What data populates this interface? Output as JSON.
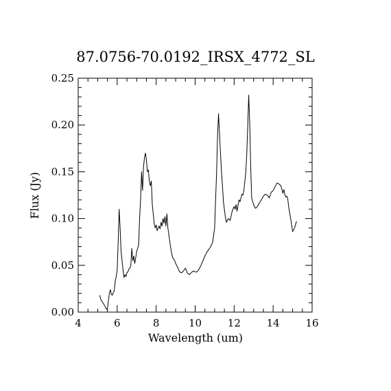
{
  "chart_data": {
    "type": "line",
    "title": "87.0756-70.0192_IRSX_4772_SL",
    "xlabel": "Wavelength (um)",
    "ylabel": "Flux (Jy)",
    "xlim": [
      4,
      16
    ],
    "ylim": [
      0,
      0.25
    ],
    "xticks": [
      "4",
      "6",
      "8",
      "10",
      "12",
      "14",
      "16"
    ],
    "yticks": [
      "0.00",
      "0.05",
      "0.10",
      "0.15",
      "0.20",
      "0.25"
    ],
    "grid": false,
    "line_color": "#000000",
    "series": [
      {
        "x": [
          5.1,
          5.15,
          5.2,
          5.3,
          5.4,
          5.45,
          5.5,
          5.55,
          5.6,
          5.65,
          5.7,
          5.75,
          5.8,
          5.85,
          5.9,
          5.95,
          6.0,
          6.05,
          6.1,
          6.15,
          6.2,
          6.25,
          6.3,
          6.35,
          6.4,
          6.45,
          6.5,
          6.55,
          6.6,
          6.65,
          6.7,
          6.75,
          6.8,
          6.85,
          6.9,
          6.95,
          7.0,
          7.05,
          7.1,
          7.15,
          7.2,
          7.25,
          7.3,
          7.35,
          7.4,
          7.45,
          7.5,
          7.55,
          7.6,
          7.62,
          7.65,
          7.7,
          7.75,
          7.8,
          7.85,
          7.9,
          7.95,
          8.0,
          8.05,
          8.1,
          8.15,
          8.2,
          8.25,
          8.3,
          8.35,
          8.4,
          8.45,
          8.5,
          8.55,
          8.6,
          8.65,
          8.7,
          8.75,
          8.8,
          8.85,
          8.9,
          8.95,
          9.0,
          9.1,
          9.2,
          9.3,
          9.4,
          9.5,
          9.6,
          9.7,
          9.8,
          9.9,
          10.0,
          10.1,
          10.2,
          10.3,
          10.4,
          10.5,
          10.6,
          10.7,
          10.8,
          10.9,
          11.0,
          11.05,
          11.1,
          11.15,
          11.2,
          11.25,
          11.3,
          11.35,
          11.4,
          11.45,
          11.5,
          11.55,
          11.6,
          11.7,
          11.8,
          11.9,
          12.0,
          12.05,
          12.1,
          12.15,
          12.2,
          12.25,
          12.3,
          12.35,
          12.4,
          12.45,
          12.5,
          12.55,
          12.6,
          12.65,
          12.7,
          12.75,
          12.8,
          12.85,
          12.9,
          12.95,
          13.0,
          13.05,
          13.1,
          13.2,
          13.3,
          13.4,
          13.5,
          13.6,
          13.7,
          13.8,
          13.9,
          14.0,
          14.1,
          14.2,
          14.3,
          14.4,
          14.5,
          14.55,
          14.6,
          14.65,
          14.7,
          14.75,
          14.8,
          14.9,
          15.0,
          15.1,
          15.2
        ],
        "y": [
          0.018,
          0.014,
          0.012,
          0.009,
          0.005,
          0.003,
          0.004,
          0.012,
          0.02,
          0.024,
          0.019,
          0.018,
          0.021,
          0.023,
          0.033,
          0.038,
          0.045,
          0.075,
          0.11,
          0.09,
          0.065,
          0.055,
          0.045,
          0.037,
          0.04,
          0.038,
          0.042,
          0.043,
          0.046,
          0.047,
          0.05,
          0.068,
          0.055,
          0.06,
          0.052,
          0.058,
          0.065,
          0.068,
          0.072,
          0.1,
          0.12,
          0.15,
          0.13,
          0.155,
          0.165,
          0.17,
          0.162,
          0.15,
          0.152,
          0.147,
          0.14,
          0.135,
          0.14,
          0.115,
          0.105,
          0.095,
          0.09,
          0.093,
          0.087,
          0.09,
          0.092,
          0.089,
          0.096,
          0.092,
          0.1,
          0.095,
          0.102,
          0.092,
          0.105,
          0.09,
          0.083,
          0.075,
          0.068,
          0.062,
          0.058,
          0.057,
          0.055,
          0.052,
          0.048,
          0.043,
          0.042,
          0.044,
          0.047,
          0.042,
          0.04,
          0.042,
          0.044,
          0.043,
          0.043,
          0.046,
          0.05,
          0.055,
          0.06,
          0.064,
          0.067,
          0.07,
          0.075,
          0.09,
          0.12,
          0.15,
          0.19,
          0.212,
          0.19,
          0.17,
          0.15,
          0.135,
          0.118,
          0.11,
          0.102,
          0.096,
          0.1,
          0.098,
          0.108,
          0.113,
          0.11,
          0.115,
          0.108,
          0.114,
          0.12,
          0.118,
          0.122,
          0.126,
          0.125,
          0.13,
          0.14,
          0.15,
          0.17,
          0.2,
          0.232,
          0.2,
          0.155,
          0.122,
          0.118,
          0.115,
          0.112,
          0.111,
          0.113,
          0.117,
          0.12,
          0.124,
          0.126,
          0.125,
          0.122,
          0.128,
          0.13,
          0.134,
          0.138,
          0.137,
          0.135,
          0.127,
          0.131,
          0.126,
          0.123,
          0.124,
          0.121,
          0.112,
          0.1,
          0.086,
          0.09,
          0.097
        ]
      }
    ]
  }
}
